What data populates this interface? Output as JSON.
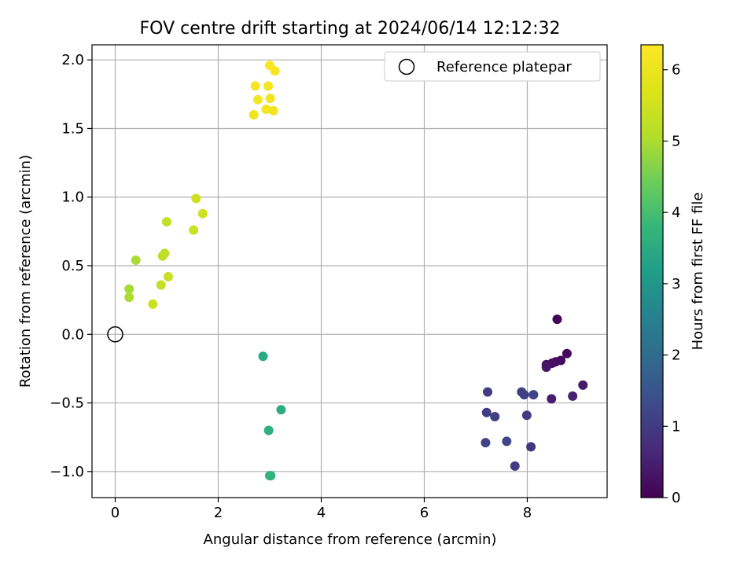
{
  "chart_data": {
    "type": "scatter",
    "title": "FOV centre drift starting at 2024/06/14 12:12:32",
    "xlabel": "Angular distance from reference (arcmin)",
    "ylabel": "Rotation from reference (arcmin)",
    "xlim": [
      -0.45,
      9.55
    ],
    "ylim": [
      -1.19,
      2.11
    ],
    "xticks": [
      0,
      2,
      4,
      6,
      8
    ],
    "xtick_labels": [
      "0",
      "2",
      "4",
      "6",
      "8"
    ],
    "yticks": [
      -1.0,
      -0.5,
      0.0,
      0.5,
      1.0,
      1.5,
      2.0
    ],
    "ytick_labels": [
      "−1.0",
      "−0.5",
      "0.0",
      "0.5",
      "1.0",
      "1.5",
      "2.0"
    ],
    "grid": true,
    "legend": {
      "placement": "upper-right",
      "entries": [
        {
          "label": "Reference platepar",
          "marker": "open-circle"
        }
      ]
    },
    "reference_point": {
      "x": 0,
      "y": 0
    },
    "colorbar": {
      "label": "Hours from first FF file",
      "range": [
        0,
        6.35
      ],
      "ticks": [
        0,
        1,
        2,
        3,
        4,
        5,
        6
      ],
      "tick_labels": [
        "0",
        "1",
        "2",
        "3",
        "4",
        "5",
        "6"
      ],
      "colormap": "viridis"
    },
    "points": [
      {
        "x": 8.58,
        "y": 0.11,
        "hours": 0.05
      },
      {
        "x": 8.77,
        "y": -0.14,
        "hours": 0.1
      },
      {
        "x": 8.65,
        "y": -0.19,
        "hours": 0.15
      },
      {
        "x": 8.55,
        "y": -0.2,
        "hours": 0.2
      },
      {
        "x": 8.48,
        "y": -0.21,
        "hours": 0.25
      },
      {
        "x": 8.37,
        "y": -0.22,
        "hours": 0.3
      },
      {
        "x": 8.37,
        "y": -0.24,
        "hours": 0.35
      },
      {
        "x": 9.08,
        "y": -0.37,
        "hours": 0.4
      },
      {
        "x": 8.47,
        "y": -0.47,
        "hours": 0.45
      },
      {
        "x": 8.88,
        "y": -0.45,
        "hours": 0.5
      },
      {
        "x": 7.23,
        "y": -0.42,
        "hours": 1.0
      },
      {
        "x": 7.89,
        "y": -0.42,
        "hours": 1.05
      },
      {
        "x": 7.94,
        "y": -0.44,
        "hours": 1.1
      },
      {
        "x": 8.12,
        "y": -0.44,
        "hours": 1.15
      },
      {
        "x": 7.21,
        "y": -0.57,
        "hours": 1.05
      },
      {
        "x": 7.37,
        "y": -0.6,
        "hours": 1.1
      },
      {
        "x": 7.99,
        "y": -0.59,
        "hours": 1.0
      },
      {
        "x": 7.19,
        "y": -0.79,
        "hours": 1.15
      },
      {
        "x": 7.6,
        "y": -0.78,
        "hours": 1.2
      },
      {
        "x": 8.07,
        "y": -0.82,
        "hours": 0.95
      },
      {
        "x": 7.76,
        "y": -0.96,
        "hours": 1.0
      },
      {
        "x": 2.87,
        "y": -0.16,
        "hours": 3.5
      },
      {
        "x": 3.22,
        "y": -0.55,
        "hours": 3.55
      },
      {
        "x": 2.98,
        "y": -0.7,
        "hours": 3.6
      },
      {
        "x": 3.0,
        "y": -1.03,
        "hours": 3.65
      },
      {
        "x": 3.02,
        "y": -1.03,
        "hours": 3.7
      },
      {
        "x": 1.57,
        "y": 0.99,
        "hours": 5.5
      },
      {
        "x": 1.7,
        "y": 0.88,
        "hours": 5.45
      },
      {
        "x": 1.0,
        "y": 0.82,
        "hours": 5.3
      },
      {
        "x": 1.52,
        "y": 0.76,
        "hours": 5.4
      },
      {
        "x": 0.96,
        "y": 0.59,
        "hours": 5.25
      },
      {
        "x": 0.92,
        "y": 0.57,
        "hours": 5.2
      },
      {
        "x": 0.4,
        "y": 0.54,
        "hours": 5.0
      },
      {
        "x": 1.03,
        "y": 0.42,
        "hours": 5.35
      },
      {
        "x": 0.89,
        "y": 0.36,
        "hours": 5.3
      },
      {
        "x": 0.27,
        "y": 0.33,
        "hours": 4.95
      },
      {
        "x": 0.27,
        "y": 0.27,
        "hours": 5.0
      },
      {
        "x": 0.73,
        "y": 0.22,
        "hours": 5.4
      },
      {
        "x": 3.0,
        "y": 1.96,
        "hours": 6.3
      },
      {
        "x": 3.1,
        "y": 1.92,
        "hours": 6.25
      },
      {
        "x": 2.72,
        "y": 1.81,
        "hours": 6.2
      },
      {
        "x": 2.97,
        "y": 1.81,
        "hours": 6.15
      },
      {
        "x": 2.77,
        "y": 1.71,
        "hours": 6.2
      },
      {
        "x": 3.01,
        "y": 1.72,
        "hours": 6.1
      },
      {
        "x": 2.93,
        "y": 1.64,
        "hours": 6.15
      },
      {
        "x": 3.07,
        "y": 1.63,
        "hours": 6.1
      },
      {
        "x": 2.69,
        "y": 1.6,
        "hours": 6.05
      }
    ]
  }
}
